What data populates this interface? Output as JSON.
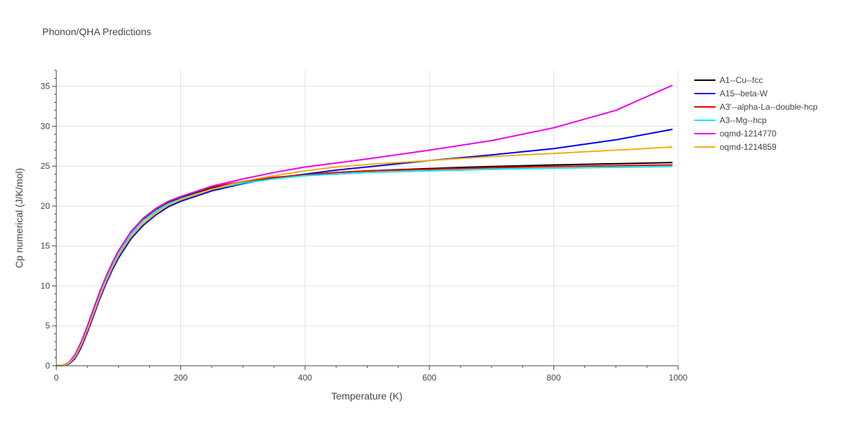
{
  "chart_data": {
    "type": "line",
    "title": "Phonon/QHA Predictions",
    "xlabel": "Temperature (K)",
    "ylabel": "Cp numerical (J/K/mol)",
    "xlim": [
      0,
      1000
    ],
    "ylim": [
      0,
      37
    ],
    "xticks": [
      0,
      200,
      400,
      600,
      800,
      1000
    ],
    "yticks": [
      0,
      5,
      10,
      15,
      20,
      25,
      30,
      35
    ],
    "grid": true,
    "legend": "right",
    "x": [
      0,
      10,
      20,
      30,
      40,
      50,
      60,
      70,
      80,
      90,
      100,
      120,
      140,
      160,
      180,
      200,
      250,
      300,
      350,
      400,
      450,
      500,
      600,
      700,
      800,
      900,
      990
    ],
    "series": [
      {
        "name": "A1--Cu--fcc",
        "color": "#000000",
        "values": [
          0,
          0.05,
          0.35,
          1.3,
          2.9,
          4.9,
          7.1,
          9.2,
          11.1,
          12.8,
          14.2,
          16.6,
          18.3,
          19.5,
          20.4,
          21.1,
          22.3,
          23.0,
          23.5,
          23.9,
          24.2,
          24.4,
          24.7,
          24.95,
          25.15,
          25.3,
          25.45
        ]
      },
      {
        "name": "A15--beta-W",
        "color": "#0000ee",
        "values": [
          0,
          0.02,
          0.2,
          0.9,
          2.3,
          4.2,
          6.3,
          8.4,
          10.3,
          12.0,
          13.5,
          15.9,
          17.6,
          18.9,
          19.9,
          20.6,
          21.9,
          22.8,
          23.5,
          24.0,
          24.5,
          24.9,
          25.7,
          26.4,
          27.2,
          28.3,
          29.6
        ]
      },
      {
        "name": "A3'--alpha-La--double-hcp",
        "color": "#ee0000",
        "values": [
          0,
          0.04,
          0.3,
          1.2,
          2.8,
          4.8,
          7.0,
          9.2,
          11.2,
          12.9,
          14.4,
          16.8,
          18.5,
          19.7,
          20.6,
          21.2,
          22.4,
          23.1,
          23.6,
          23.9,
          24.2,
          24.4,
          24.6,
          24.8,
          24.95,
          25.05,
          25.15
        ]
      },
      {
        "name": "A3--Mg--hcp",
        "color": "#00eeee",
        "values": [
          0,
          0.03,
          0.28,
          1.1,
          2.6,
          4.6,
          6.8,
          8.9,
          10.9,
          12.6,
          14.1,
          16.5,
          18.2,
          19.4,
          20.3,
          20.9,
          22.1,
          22.9,
          23.4,
          23.8,
          24.0,
          24.2,
          24.4,
          24.6,
          24.75,
          24.85,
          24.95
        ]
      },
      {
        "name": "oqmd-1214770",
        "color": "#ee00ee",
        "values": [
          0,
          0.05,
          0.38,
          1.4,
          3.0,
          5.0,
          7.2,
          9.3,
          11.2,
          12.9,
          14.4,
          16.8,
          18.5,
          19.7,
          20.6,
          21.2,
          22.5,
          23.4,
          24.2,
          24.9,
          25.4,
          25.9,
          27.0,
          28.2,
          29.8,
          32.0,
          35.1
        ]
      },
      {
        "name": "oqmd-1214859",
        "color": "#eeb011",
        "values": [
          0,
          0.04,
          0.3,
          1.1,
          2.6,
          4.5,
          6.6,
          8.7,
          10.6,
          12.3,
          13.8,
          16.2,
          17.9,
          19.2,
          20.1,
          20.8,
          22.1,
          23.1,
          23.8,
          24.4,
          24.9,
          25.2,
          25.7,
          26.2,
          26.6,
          27.0,
          27.4
        ]
      }
    ]
  }
}
